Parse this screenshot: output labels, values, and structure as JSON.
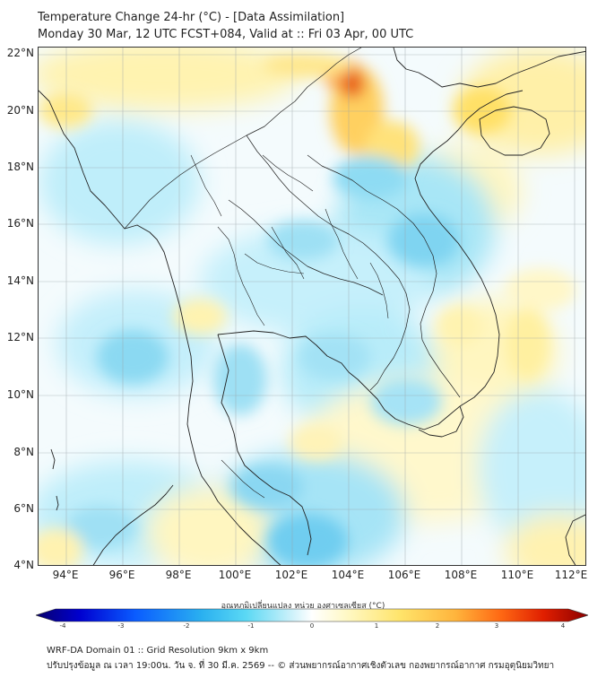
{
  "title": {
    "line1": "Temperature Change 24-hr (°C) - [Data Assimilation]",
    "line2": "Monday 30 Mar, 12 UTC FCST+084, Valid at :: Fri 03 Apr, 00 UTC"
  },
  "map": {
    "lat_labels": [
      "22°N",
      "20°N",
      "18°N",
      "16°N",
      "14°N",
      "12°N",
      "10°N",
      "8°N",
      "6°N",
      "4°N"
    ],
    "lon_labels": [
      "94°E",
      "96°E",
      "98°E",
      "100°E",
      "102°E",
      "104°E",
      "106°E",
      "108°E",
      "110°E",
      "112°E"
    ],
    "lon_range": [
      93,
      112.5
    ],
    "lat_range": [
      4,
      22.2
    ],
    "grid": true
  },
  "colorbar": {
    "label": "อุณหภูมิเปลี่ยนแปลง หน่วย องศาเซลเซียส (°C)",
    "ticks": [
      "-4",
      "-3",
      "-2",
      "-1",
      "0",
      "1",
      "2",
      "3",
      "4"
    ],
    "range": [
      -4,
      4
    ],
    "colors": [
      "#08006b",
      "#0000d0",
      "#0a5cff",
      "#2ab0f0",
      "#5ad8f4",
      "#c8f0fa",
      "#ffffff",
      "#fff9c8",
      "#ffe46a",
      "#ffb43c",
      "#ff6a14",
      "#e01e00",
      "#8b0000"
    ]
  },
  "footer": {
    "line1": "WRF-DA Domain 01 :: Grid Resolution 9km x 9km",
    "line2": "ปรับปรุงข้อมูล ณ เวลา 19:00น. วัน จ. ที่ 30 มี.ค. 2569 -- © ส่วนพยากรณ์อากาศเชิงตัวเลข กองพยากรณ์อากาศ กรมอุตุนิยมวิทยา"
  }
}
